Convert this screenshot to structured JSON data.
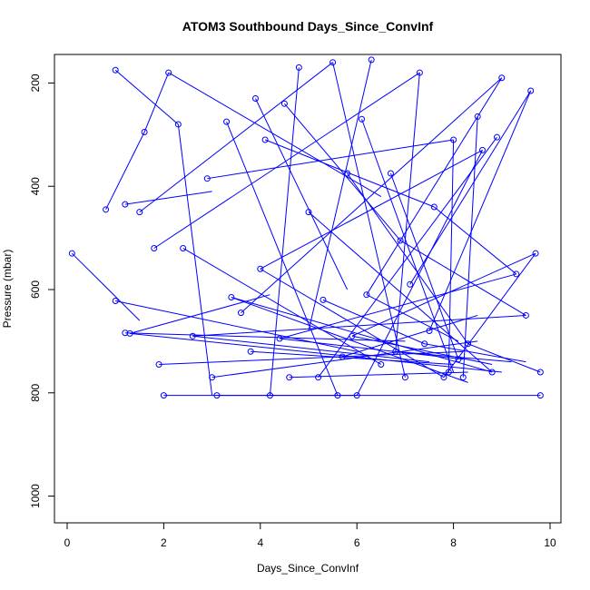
{
  "chart_data": {
    "type": "scatter",
    "title": "ATOM3 Southbound Days_Since_ConvInf",
    "xlabel": "Days_Since_ConvInf",
    "ylabel": "Pressure (mbar)",
    "xlim": [
      0,
      10
    ],
    "ylim": [
      1050,
      150
    ],
    "y_reversed": true,
    "x_ticks": [
      0,
      2,
      4,
      6,
      8,
      10
    ],
    "y_ticks": [
      200,
      400,
      600,
      800,
      1000
    ],
    "x_tick_labels": [
      "0",
      "2",
      "4",
      "6",
      "8",
      "10"
    ],
    "y_tick_labels": [
      "200",
      "400",
      "600",
      "800",
      "1000"
    ],
    "grid": false,
    "series_color": "#0000ff",
    "marker": "open-circle",
    "connected_by_lines": true,
    "points": [
      [
        0.1,
        530
      ],
      [
        0.8,
        445
      ],
      [
        1.0,
        622
      ],
      [
        1.2,
        435
      ],
      [
        1.3,
        685
      ],
      [
        1.6,
        295
      ],
      [
        1.2,
        684
      ],
      [
        1.0,
        175
      ],
      [
        1.5,
        450
      ],
      [
        2.0,
        805
      ],
      [
        2.1,
        180
      ],
      [
        2.3,
        280
      ],
      [
        1.8,
        520
      ],
      [
        2.9,
        385
      ],
      [
        3.0,
        770
      ],
      [
        3.1,
        805
      ],
      [
        3.3,
        275
      ],
      [
        3.6,
        645
      ],
      [
        3.9,
        230
      ],
      [
        4.2,
        805
      ],
      [
        4.1,
        310
      ],
      [
        4.5,
        240
      ],
      [
        4.8,
        170
      ],
      [
        5.0,
        450
      ],
      [
        5.2,
        770
      ],
      [
        5.5,
        160
      ],
      [
        5.6,
        805
      ],
      [
        5.8,
        375
      ],
      [
        6.0,
        805
      ],
      [
        6.1,
        270
      ],
      [
        6.3,
        155
      ],
      [
        6.7,
        375
      ],
      [
        6.9,
        505
      ],
      [
        7.0,
        770
      ],
      [
        7.1,
        590
      ],
      [
        7.3,
        180
      ],
      [
        7.6,
        440
      ],
      [
        7.8,
        770
      ],
      [
        8.0,
        310
      ],
      [
        8.1,
        735
      ],
      [
        8.3,
        705
      ],
      [
        8.5,
        265
      ],
      [
        8.6,
        330
      ],
      [
        8.8,
        760
      ],
      [
        8.9,
        305
      ],
      [
        9.0,
        190
      ],
      [
        9.3,
        570
      ],
      [
        9.5,
        650
      ],
      [
        9.6,
        215
      ],
      [
        9.7,
        530
      ],
      [
        9.8,
        760
      ],
      [
        9.8,
        805
      ],
      [
        4.4,
        695
      ],
      [
        5.3,
        620
      ],
      [
        6.5,
        745
      ],
      [
        7.4,
        705
      ],
      [
        3.8,
        720
      ],
      [
        2.6,
        690
      ],
      [
        4.6,
        770
      ],
      [
        5.9,
        690
      ],
      [
        6.2,
        610
      ],
      [
        7.9,
        760
      ],
      [
        8.2,
        770
      ],
      [
        3.4,
        615
      ],
      [
        2.4,
        520
      ],
      [
        5.7,
        730
      ],
      [
        6.8,
        720
      ],
      [
        7.5,
        680
      ],
      [
        4.0,
        560
      ],
      [
        1.9,
        745
      ]
    ],
    "segments": [
      [
        [
          0.1,
          530
        ],
        [
          1.5,
          660
        ]
      ],
      [
        [
          0.8,
          445
        ],
        [
          1.6,
          295
        ]
      ],
      [
        [
          1.0,
          175
        ],
        [
          2.3,
          280
        ]
      ],
      [
        [
          1.2,
          435
        ],
        [
          3.0,
          410
        ]
      ],
      [
        [
          1.3,
          685
        ],
        [
          4.2,
          610
        ]
      ],
      [
        [
          1.6,
          295
        ],
        [
          2.1,
          180
        ]
      ],
      [
        [
          1.5,
          450
        ],
        [
          5.5,
          160
        ]
      ],
      [
        [
          2.0,
          805
        ],
        [
          9.8,
          805
        ]
      ],
      [
        [
          2.1,
          180
        ],
        [
          6.5,
          420
        ]
      ],
      [
        [
          2.3,
          280
        ],
        [
          3.0,
          805
        ]
      ],
      [
        [
          1.8,
          520
        ],
        [
          7.3,
          180
        ]
      ],
      [
        [
          2.9,
          385
        ],
        [
          8.0,
          310
        ]
      ],
      [
        [
          3.0,
          770
        ],
        [
          8.5,
          700
        ]
      ],
      [
        [
          3.1,
          805
        ],
        [
          6.0,
          805
        ]
      ],
      [
        [
          3.3,
          275
        ],
        [
          5.6,
          805
        ]
      ],
      [
        [
          3.6,
          645
        ],
        [
          9.0,
          190
        ]
      ],
      [
        [
          3.9,
          230
        ],
        [
          5.8,
          600
        ]
      ],
      [
        [
          4.1,
          310
        ],
        [
          7.6,
          440
        ]
      ],
      [
        [
          4.2,
          805
        ],
        [
          4.8,
          170
        ]
      ],
      [
        [
          4.5,
          240
        ],
        [
          6.9,
          505
        ]
      ],
      [
        [
          5.0,
          450
        ],
        [
          8.8,
          760
        ]
      ],
      [
        [
          5.2,
          770
        ],
        [
          8.9,
          305
        ]
      ],
      [
        [
          5.5,
          160
        ],
        [
          7.0,
          770
        ]
      ],
      [
        [
          5.8,
          375
        ],
        [
          8.3,
          705
        ]
      ],
      [
        [
          6.0,
          805
        ],
        [
          8.6,
          330
        ]
      ],
      [
        [
          6.1,
          270
        ],
        [
          8.0,
          760
        ]
      ],
      [
        [
          6.3,
          155
        ],
        [
          5.0,
          680
        ]
      ],
      [
        [
          6.7,
          375
        ],
        [
          8.1,
          735
        ]
      ],
      [
        [
          6.9,
          505
        ],
        [
          9.5,
          650
        ]
      ],
      [
        [
          7.1,
          590
        ],
        [
          9.6,
          215
        ]
      ],
      [
        [
          7.3,
          180
        ],
        [
          6.8,
          720
        ]
      ],
      [
        [
          7.6,
          440
        ],
        [
          9.3,
          570
        ]
      ],
      [
        [
          7.8,
          770
        ],
        [
          9.7,
          530
        ]
      ],
      [
        [
          8.0,
          310
        ],
        [
          7.9,
          760
        ]
      ],
      [
        [
          8.3,
          705
        ],
        [
          9.8,
          760
        ]
      ],
      [
        [
          8.5,
          265
        ],
        [
          8.2,
          770
        ]
      ],
      [
        [
          8.6,
          330
        ],
        [
          4.0,
          560
        ]
      ],
      [
        [
          8.8,
          760
        ],
        [
          3.4,
          615
        ]
      ],
      [
        [
          9.0,
          190
        ],
        [
          6.2,
          610
        ]
      ],
      [
        [
          9.3,
          570
        ],
        [
          4.4,
          695
        ]
      ],
      [
        [
          9.5,
          650
        ],
        [
          2.6,
          690
        ]
      ],
      [
        [
          9.6,
          215
        ],
        [
          7.5,
          680
        ]
      ],
      [
        [
          9.7,
          530
        ],
        [
          5.9,
          690
        ]
      ],
      [
        [
          1.9,
          745
        ],
        [
          8.2,
          720
        ]
      ],
      [
        [
          2.4,
          520
        ],
        [
          6.5,
          745
        ]
      ],
      [
        [
          3.8,
          720
        ],
        [
          8.0,
          745
        ]
      ],
      [
        [
          4.6,
          770
        ],
        [
          8.3,
          760
        ]
      ],
      [
        [
          5.3,
          620
        ],
        [
          7.4,
          705
        ]
      ],
      [
        [
          5.7,
          730
        ],
        [
          8.5,
          650
        ]
      ],
      [
        [
          6.2,
          610
        ],
        [
          8.1,
          700
        ]
      ],
      [
        [
          1.2,
          684
        ],
        [
          7.0,
          700
        ]
      ],
      [
        [
          1.0,
          622
        ],
        [
          6.0,
          720
        ]
      ],
      [
        [
          1.3,
          685
        ],
        [
          9.0,
          760
        ]
      ],
      [
        [
          2.6,
          690
        ],
        [
          7.5,
          740
        ]
      ],
      [
        [
          3.4,
          615
        ],
        [
          8.3,
          780
        ]
      ],
      [
        [
          4.0,
          560
        ],
        [
          7.8,
          770
        ]
      ],
      [
        [
          4.4,
          695
        ],
        [
          8.2,
          735
        ]
      ],
      [
        [
          5.9,
          690
        ],
        [
          8.8,
          745
        ]
      ],
      [
        [
          6.8,
          720
        ],
        [
          9.2,
          740
        ]
      ],
      [
        [
          7.4,
          705
        ],
        [
          9.5,
          740
        ]
      ]
    ]
  }
}
